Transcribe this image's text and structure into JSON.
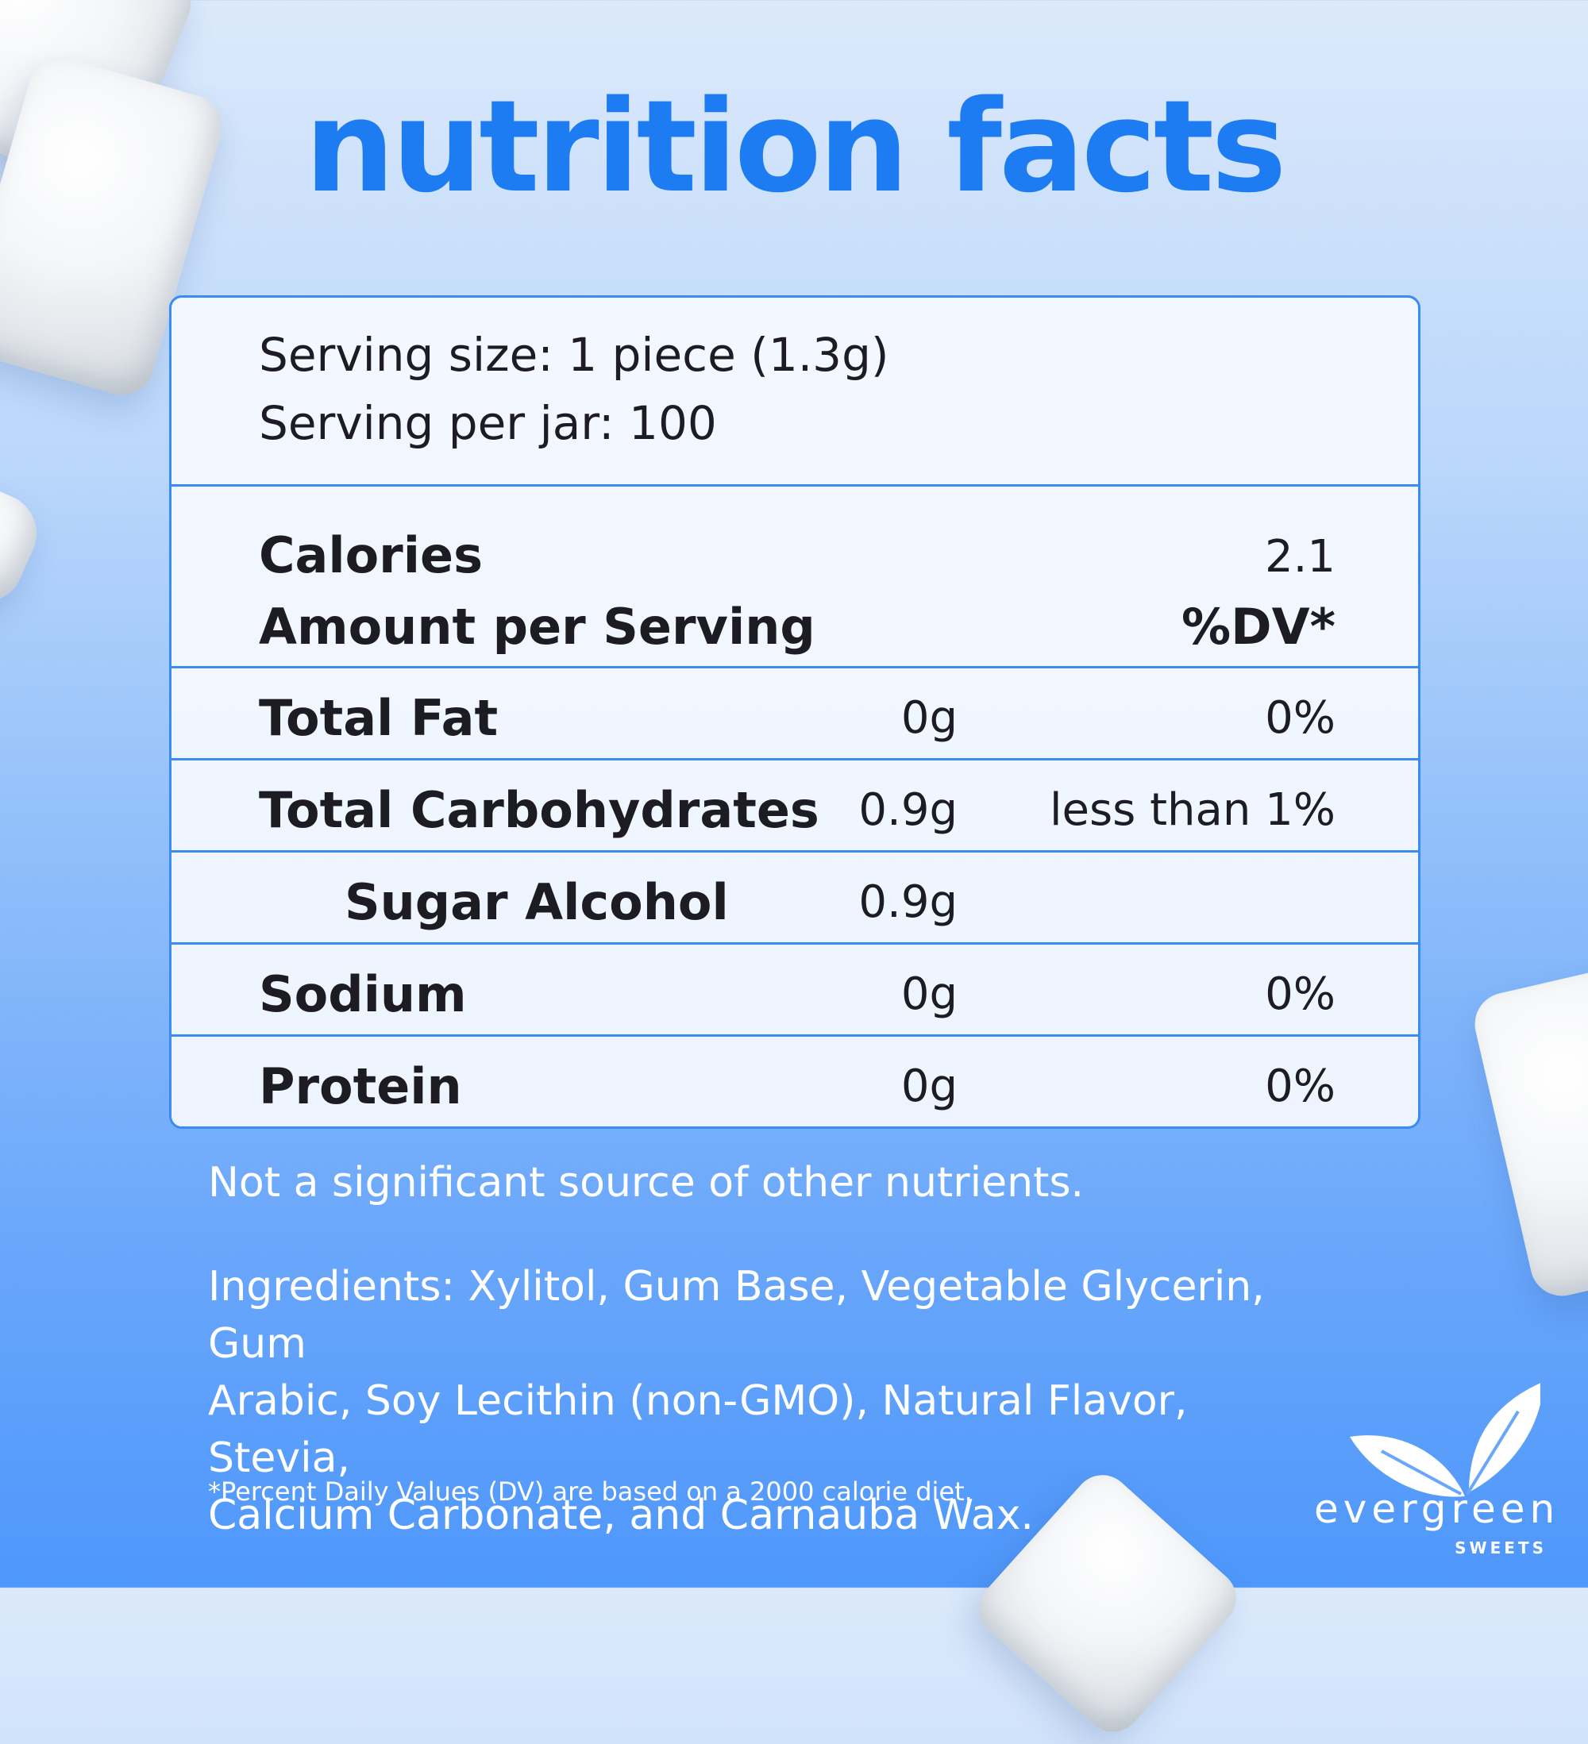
{
  "title": "nutrition facts",
  "serving": {
    "size": "Serving size: 1 piece (1.3g)",
    "per_jar": "Serving per jar: 100"
  },
  "calories": {
    "label": "Calories",
    "value": "2.1",
    "amount_label": "Amount per Serving",
    "dv_label": "%DV*"
  },
  "nutrients": [
    {
      "name": "Total Fat",
      "amount": "0g",
      "dv": "0%"
    },
    {
      "name": "Total Carbohydrates",
      "amount": "0.9g",
      "dv": "less than 1%"
    },
    {
      "name": "Sugar Alcohol",
      "amount": "0.9g",
      "dv": ""
    },
    {
      "name": "Sodium",
      "amount": "0g",
      "dv": "0%"
    },
    {
      "name": "Protein",
      "amount": "0g",
      "dv": "0%"
    }
  ],
  "notes": {
    "significance": "Not a significant source of other nutrients.",
    "ingredients_lines": [
      "Ingredients: Xylitol, Gum Base, Vegetable Glycerin, Gum",
      "Arabic, Soy Lecithin (non-GMO), Natural Flavor, Stevia,",
      "Calcium Carbonate, and Carnauba Wax."
    ],
    "footnote": "*Percent Daily Values (DV) are based on a 2000 calorie diet."
  },
  "logo": {
    "brand": "evergreen",
    "sub": "SWEETS"
  },
  "colors": {
    "title": "#1d7cf2",
    "border": "#3a8cf0",
    "text": "#1c1c22"
  }
}
